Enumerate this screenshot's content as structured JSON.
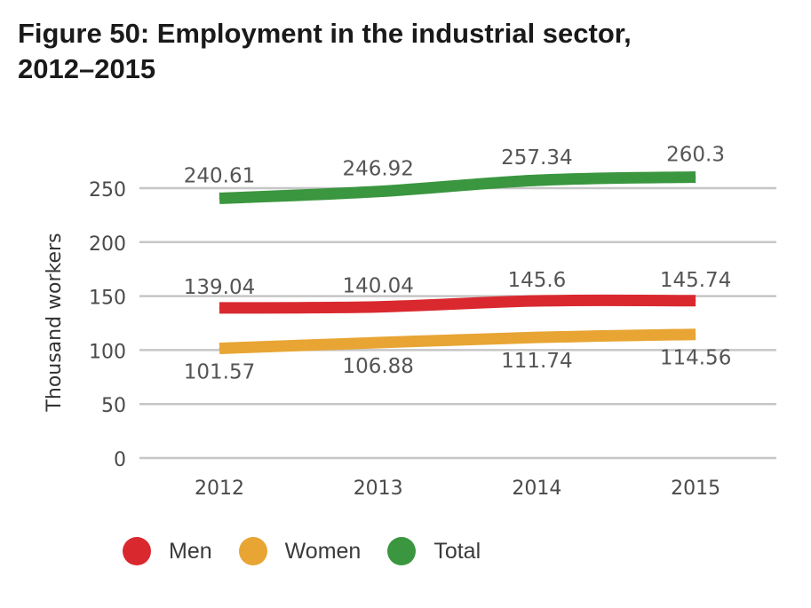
{
  "title_lines": [
    "Figure 50: Employment in the industrial sector,",
    "2012–2015"
  ],
  "chart_data": {
    "type": "line",
    "title": "Figure 50: Employment in the industrial sector, 2012–2015",
    "xlabel": "",
    "ylabel": "Thousand workers",
    "categories": [
      "2012",
      "2013",
      "2014",
      "2015"
    ],
    "yticks": [
      "0",
      "50",
      "100",
      "150",
      "200",
      "250"
    ],
    "ylim": [
      0,
      250
    ],
    "grid": true,
    "legend_position": "bottom",
    "series": [
      {
        "name": "Men",
        "color": "#d9292f",
        "values": [
          139.04,
          140.04,
          145.6,
          145.74
        ],
        "labels": [
          "139.04",
          "140.04",
          "145.6",
          "145.74"
        ]
      },
      {
        "name": "Women",
        "color": "#e8a534",
        "values": [
          101.57,
          106.88,
          111.74,
          114.56
        ],
        "labels": [
          "101.57",
          "106.88",
          "111.74",
          "114.56"
        ]
      },
      {
        "name": "Total",
        "color": "#3a963f",
        "values": [
          240.61,
          246.92,
          257.34,
          260.3
        ],
        "labels": [
          "240.61",
          "246.92",
          "257.34",
          "260.3"
        ]
      }
    ]
  }
}
